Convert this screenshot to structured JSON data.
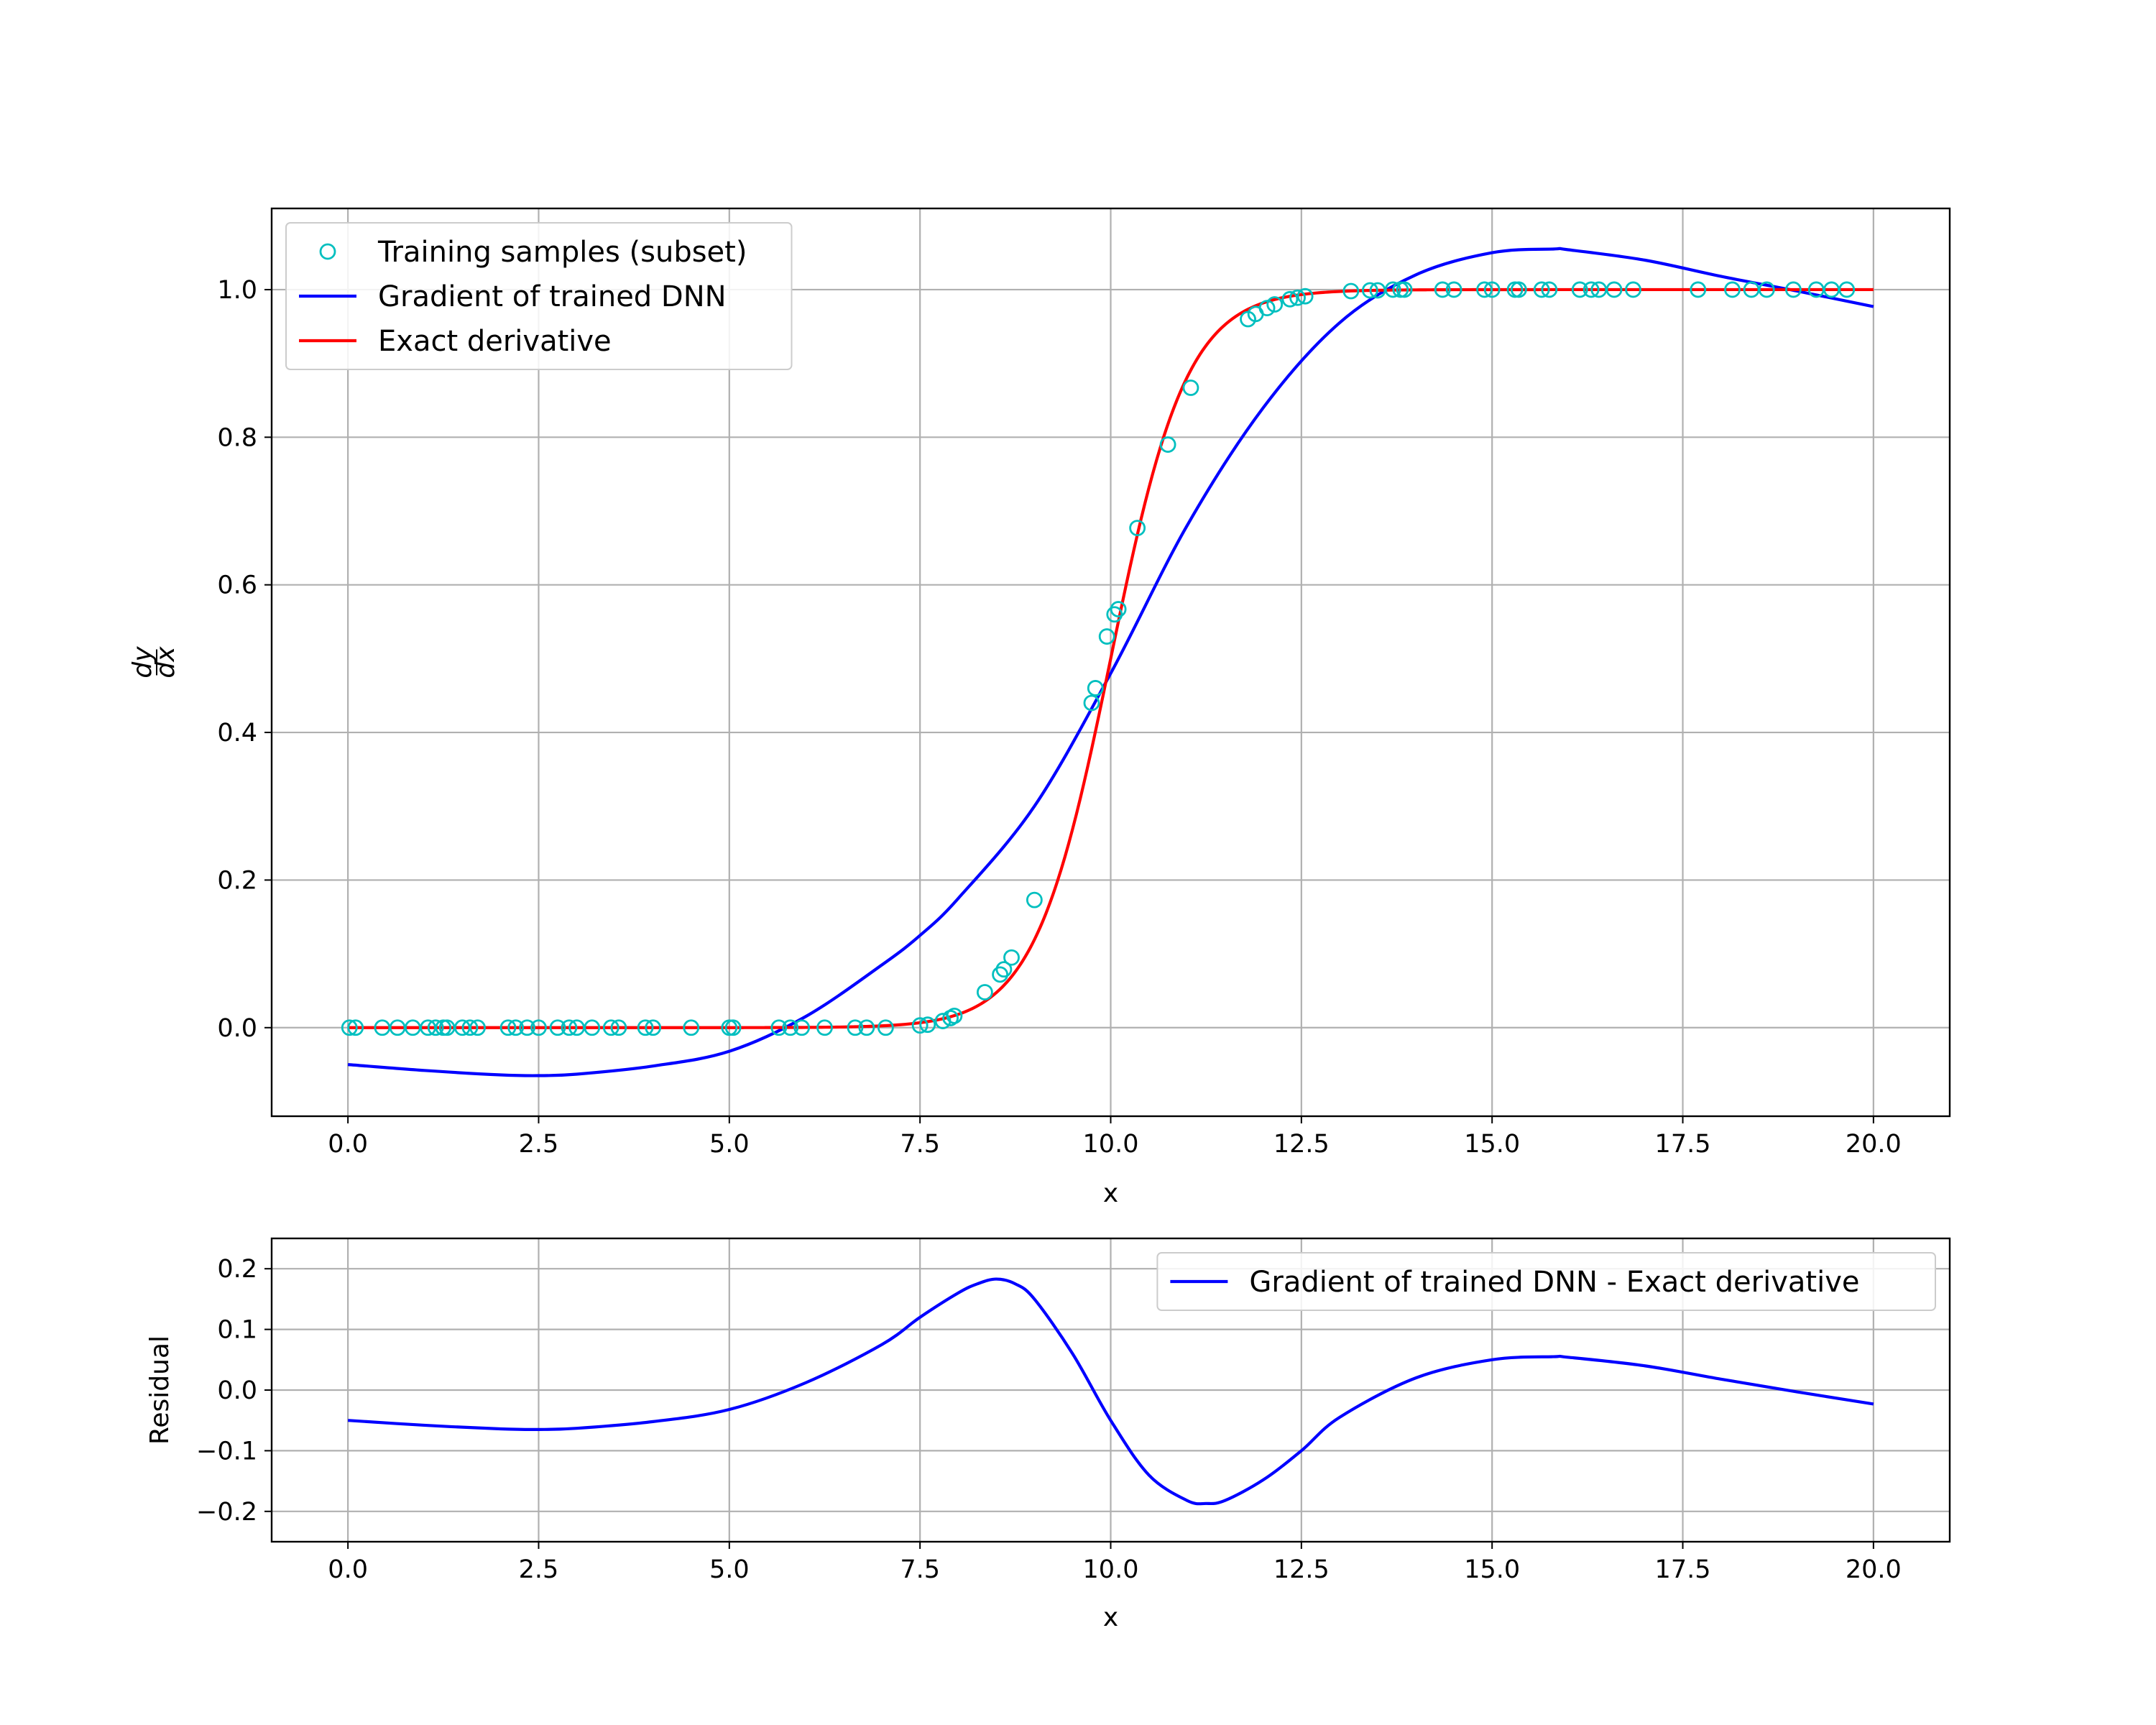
{
  "chart_data": [
    {
      "type": "line",
      "xlabel": "x",
      "ylabel": "dy/dx",
      "xlim": [
        -1,
        21
      ],
      "ylim": [
        -0.12,
        1.11
      ],
      "xticks": [
        "0.0",
        "2.5",
        "5.0",
        "7.5",
        "10.0",
        "12.5",
        "15.0",
        "17.5",
        "20.0"
      ],
      "yticks": [
        "0.0",
        "0.2",
        "0.4",
        "0.6",
        "0.8",
        "1.0"
      ],
      "grid": true,
      "legend_position": "upper-left",
      "series": [
        {
          "name": "Training samples (subset)",
          "kind": "scatter",
          "marker": "open-circle",
          "color": "#00bfbf",
          "x": [
            0.02,
            0.1,
            0.45,
            0.65,
            0.85,
            1.05,
            1.15,
            1.25,
            1.3,
            1.5,
            1.6,
            1.7,
            2.1,
            2.2,
            2.35,
            2.5,
            2.75,
            2.9,
            3.0,
            3.2,
            3.45,
            3.55,
            3.9,
            4.0,
            4.5,
            5.0,
            5.05,
            5.65,
            5.8,
            5.95,
            6.25,
            6.65,
            6.8,
            7.05,
            7.5,
            7.6,
            7.8,
            7.9,
            7.95,
            8.35,
            8.55,
            8.6,
            8.7,
            9.0,
            9.75,
            9.8,
            9.95,
            10.05,
            10.1,
            10.35,
            10.75,
            11.05,
            11.8,
            11.9,
            12.05,
            12.15,
            12.35,
            12.45,
            12.55,
            13.15,
            13.4,
            13.5,
            13.7,
            13.8,
            13.85,
            14.35,
            14.5,
            14.9,
            15.0,
            15.3,
            15.35,
            15.65,
            15.75,
            16.15,
            16.3,
            16.4,
            16.6,
            16.85,
            17.7,
            18.15,
            18.4,
            18.6,
            18.95,
            19.25,
            19.45,
            19.65
          ],
          "y": [
            0.0,
            0.0,
            0.0,
            0.0,
            0.0,
            0.0,
            0.0,
            0.0,
            0.0,
            0.0,
            0.0,
            0.0,
            0.0,
            0.0,
            0.0,
            0.0,
            0.0,
            0.0,
            0.0,
            0.0,
            0.0,
            0.0,
            0.0,
            0.0,
            0.0,
            0.0,
            0.0,
            0.0,
            0.0,
            0.0,
            0.0,
            0.0,
            0.0,
            0.0,
            0.003,
            0.004,
            0.009,
            0.013,
            0.016,
            0.048,
            0.072,
            0.079,
            0.095,
            0.173,
            0.44,
            0.46,
            0.53,
            0.56,
            0.567,
            0.677,
            0.79,
            0.867,
            0.96,
            0.967,
            0.975,
            0.98,
            0.987,
            0.989,
            0.991,
            0.998,
            0.999,
            0.999,
            1.0,
            1.0,
            1.0,
            1.0,
            1.0,
            1.0,
            1.0,
            1.0,
            1.0,
            1.0,
            1.0,
            1.0,
            1.0,
            1.0,
            1.0,
            1.0,
            1.0,
            1.0,
            1.0,
            1.0,
            1.0,
            1.0,
            1.0,
            1.0
          ]
        },
        {
          "name": "Gradient of trained DNN",
          "kind": "line",
          "color": "#0000ff",
          "x": [
            0,
            1,
            2,
            2.5,
            3,
            4,
            5,
            6,
            7,
            7.5,
            8,
            9,
            10,
            11,
            12,
            13,
            14,
            15,
            15.8,
            16,
            17,
            18,
            19,
            20
          ],
          "y": [
            -0.05,
            -0.058,
            -0.064,
            -0.065,
            -0.063,
            -0.052,
            -0.032,
            0.015,
            0.085,
            0.125,
            0.175,
            0.3,
            0.48,
            0.68,
            0.84,
            0.955,
            1.02,
            1.05,
            1.055,
            1.054,
            1.04,
            1.018,
            0.998,
            0.977
          ]
        },
        {
          "name": "Exact derivative",
          "kind": "line",
          "color": "#ff0000",
          "function": "logistic",
          "x_range": [
            0,
            20
          ],
          "center": 10,
          "slope": 2.0
        }
      ]
    },
    {
      "type": "line",
      "xlabel": "x",
      "ylabel": "Residual",
      "xlim": [
        -1,
        21
      ],
      "ylim": [
        -0.25,
        0.25
      ],
      "xticks": [
        "0.0",
        "2.5",
        "5.0",
        "7.5",
        "10.0",
        "12.5",
        "15.0",
        "17.5",
        "20.0"
      ],
      "yticks": [
        "0.2",
        "0.1",
        "0.0",
        "−0.1",
        "−0.2"
      ],
      "grid": true,
      "legend_position": "upper-right",
      "series": [
        {
          "name": "Gradient of trained DNN - Exact derivative",
          "kind": "line",
          "color": "#0000ff",
          "x": [
            0,
            1,
            2,
            2.5,
            3,
            4,
            5,
            6,
            7,
            7.5,
            8,
            8.25,
            8.5,
            8.75,
            9,
            9.5,
            10,
            10.5,
            11,
            11.25,
            11.5,
            12,
            12.5,
            13,
            14,
            15,
            15.8,
            16,
            17,
            18,
            19,
            20
          ],
          "y": [
            -0.05,
            -0.058,
            -0.064,
            -0.065,
            -0.063,
            -0.052,
            -0.032,
            0.012,
            0.075,
            0.12,
            0.16,
            0.175,
            0.183,
            0.175,
            0.15,
            0.06,
            -0.05,
            -0.14,
            -0.182,
            -0.187,
            -0.182,
            -0.148,
            -0.1,
            -0.045,
            0.02,
            0.05,
            0.055,
            0.054,
            0.04,
            0.018,
            -0.003,
            -0.023
          ]
        }
      ]
    }
  ]
}
